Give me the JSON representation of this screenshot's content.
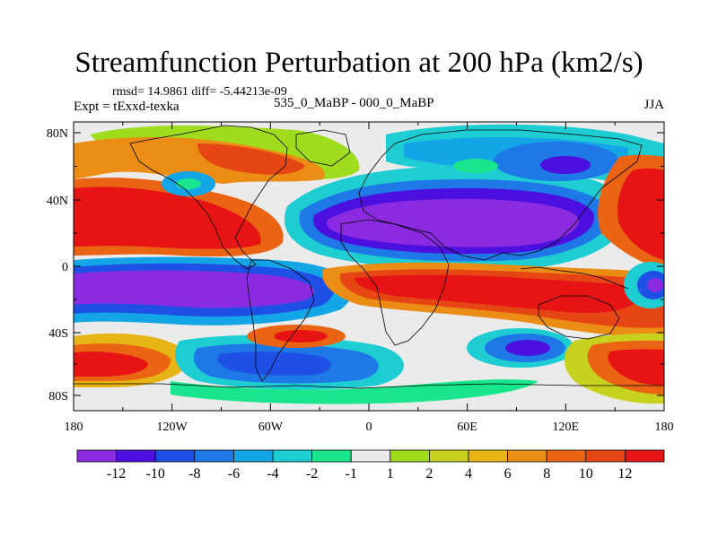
{
  "title": "Streamfunction Perturbation at 200 hPa (km2/s)",
  "stats": "rmsd= 14.9861 diff= -5.44213e-09",
  "expt": "Expt = tExxd-texka",
  "case": "535_0_MaBP - 000_0_MaBP",
  "season": "JJA",
  "lat_ticks": [
    "80N",
    "40N",
    "0",
    "40S",
    "80S"
  ],
  "lon_ticks": [
    "180",
    "120W",
    "60W",
    "0",
    "60E",
    "120E",
    "180"
  ],
  "colorbar": {
    "colors": [
      "#8a2be2",
      "#4b0fe0",
      "#1e50e6",
      "#1e78e6",
      "#14a5e6",
      "#1ecdd2",
      "#19e68c",
      "#ebebeb",
      "#a0dc1e",
      "#c8d21e",
      "#e6b414",
      "#eb8c14",
      "#eb6414",
      "#e64614",
      "#e61414"
    ],
    "labels": [
      "-12",
      "-10",
      "-8",
      "-6",
      "-4",
      "-2",
      "-1",
      "1",
      "2",
      "4",
      "6",
      "8",
      "10",
      "12"
    ]
  },
  "colors": {
    "background": "#ebebeb",
    "frame": "#000000"
  }
}
